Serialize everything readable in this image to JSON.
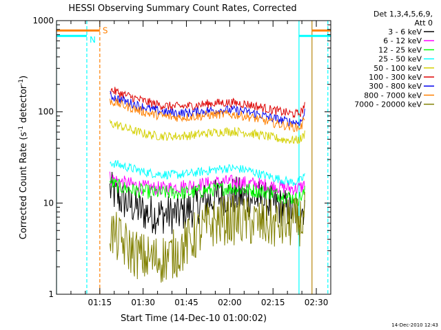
{
  "page_title": "HESSI Observing Summary Count Rates, Corrected",
  "chart_data": {
    "type": "line",
    "title": "HESSI Observing Summary Count Rates, Corrected",
    "xlabel": "Start Time (14-Dec-10 01:00:02)",
    "ylabel": "Corrected Count Rate (s",
    "ylabel_sup1": "-1",
    "ylabel_mid": " detector",
    "ylabel_sup2": "-1",
    "ylabel_end": ")",
    "x_unit": "minutes since 01:00:02",
    "xlim": [
      0,
      95
    ],
    "ylim": [
      1,
      1000
    ],
    "yscale": "log",
    "grid": false,
    "x_ticks": [
      {
        "value": 15,
        "label": "01:15"
      },
      {
        "value": 30,
        "label": "01:30"
      },
      {
        "value": 45,
        "label": "01:45"
      },
      {
        "value": 60,
        "label": "02:00"
      },
      {
        "value": 75,
        "label": "02:15"
      },
      {
        "value": 90,
        "label": "02:30"
      }
    ],
    "y_ticks": [
      {
        "value": 1,
        "label": "1"
      },
      {
        "value": 10,
        "label": "10"
      },
      {
        "value": 100,
        "label": "100"
      },
      {
        "value": 1000,
        "label": "1000"
      }
    ],
    "legend_header": [
      "Det 1,3,4,5,6,9,",
      "Att 0"
    ],
    "legend_position": "right",
    "x": [
      18.5,
      22,
      26,
      30,
      34,
      38,
      42,
      46,
      50,
      54,
      58,
      62,
      66,
      70,
      74,
      78,
      81,
      83.5,
      85,
      86
    ],
    "series": [
      {
        "name": "3 - 6 keV",
        "color": "#000000",
        "values": [
          14,
          11,
          9.5,
          8,
          7.5,
          7.5,
          7.5,
          8.5,
          10,
          11,
          12,
          12,
          11.5,
          11,
          10,
          9,
          8.5,
          8,
          8.5,
          9.5
        ]
      },
      {
        "name": "6 - 12 keV",
        "color": "#ff00ff",
        "values": [
          19,
          17,
          16,
          15,
          14.5,
          14.5,
          15,
          15.5,
          16,
          16.5,
          17,
          17,
          16.5,
          16,
          15.5,
          15,
          14.5,
          14.5,
          15,
          16
        ]
      },
      {
        "name": "12 - 25 keV",
        "color": "#00ff00",
        "values": [
          17,
          15,
          14,
          13.5,
          13,
          13,
          13,
          13,
          13.5,
          14,
          14.5,
          14.5,
          14,
          13.5,
          13,
          12,
          11.5,
          11,
          12,
          13
        ]
      },
      {
        "name": "25 - 50 keV",
        "color": "#00ffff",
        "values": [
          28,
          26,
          24,
          22,
          21,
          20.5,
          20.5,
          21,
          22,
          23,
          24,
          24,
          23,
          21,
          19.5,
          18,
          17,
          17,
          18,
          21
        ]
      },
      {
        "name": "50 - 100 keV",
        "color": "#d4d000",
        "values": [
          75,
          70,
          63,
          58,
          55,
          54,
          54,
          55,
          57,
          59,
          61,
          61,
          59,
          56,
          53,
          50,
          49,
          49,
          51,
          58
        ]
      },
      {
        "name": "100 - 300 keV",
        "color": "#dd0000",
        "values": [
          175,
          160,
          145,
          132,
          122,
          116,
          114,
          116,
          120,
          124,
          126,
          125,
          121,
          114,
          106,
          100,
          96,
          95,
          100,
          125
        ]
      },
      {
        "name": "300 - 800 keV",
        "color": "#0000ee",
        "values": [
          150,
          137,
          124,
          113,
          104,
          99,
          97,
          98,
          101,
          104,
          105,
          104,
          100,
          94,
          87,
          81,
          78,
          76,
          80,
          100
        ]
      },
      {
        "name": "800 - 7000 keV",
        "color": "#ff8000",
        "values": [
          132,
          121,
          110,
          100,
          93,
          89,
          87,
          88,
          90,
          93,
          94,
          93,
          89,
          83,
          77,
          72,
          69,
          67,
          70,
          90
        ]
      },
      {
        "name": "7000 - 20000 keV",
        "color": "#808000",
        "values": [
          5,
          3.8,
          3,
          2.5,
          2.4,
          2.5,
          2.9,
          3.8,
          5,
          6,
          6.5,
          6.5,
          6.3,
          6,
          5.8,
          5.8,
          6,
          6.2,
          6.5,
          7
        ]
      }
    ],
    "annotations": [
      {
        "label": "S",
        "color": "#ff8000",
        "type": "flag_bar",
        "x_start": 0,
        "x_end": 15,
        "y": 780,
        "line_x": 15
      },
      {
        "label": "S",
        "color": "#ff8000",
        "type": "flag_bar",
        "x_start": 88.5,
        "x_end": 95,
        "y": 780,
        "line_x": 88.5,
        "hide_label": true
      },
      {
        "label": "N",
        "color": "#00ffff",
        "type": "flag_bar",
        "x_start": 0,
        "x_end": 10.5,
        "y": 680,
        "line_x": 10.5
      },
      {
        "label": "N",
        "color": "#00ffff",
        "type": "flag_bar",
        "x_start": 84,
        "x_end": 95,
        "y": 680,
        "line_x": 84,
        "hide_label": true
      }
    ],
    "vertical_lines": [
      {
        "x": 0,
        "color": "#00ffff",
        "style": "solid"
      },
      {
        "x": 10.5,
        "color": "#00ffff",
        "style": "dashed"
      },
      {
        "x": 15,
        "color": "#ff8000",
        "style": "dashed"
      },
      {
        "x": 84,
        "color": "#00ffff",
        "style": "solid"
      },
      {
        "x": 88.5,
        "color": "#b8860b",
        "style": "solid"
      },
      {
        "x": 94,
        "color": "#00ffff",
        "style": "dashed"
      }
    ]
  },
  "timestamp": "14-Dec-2010 12:43"
}
